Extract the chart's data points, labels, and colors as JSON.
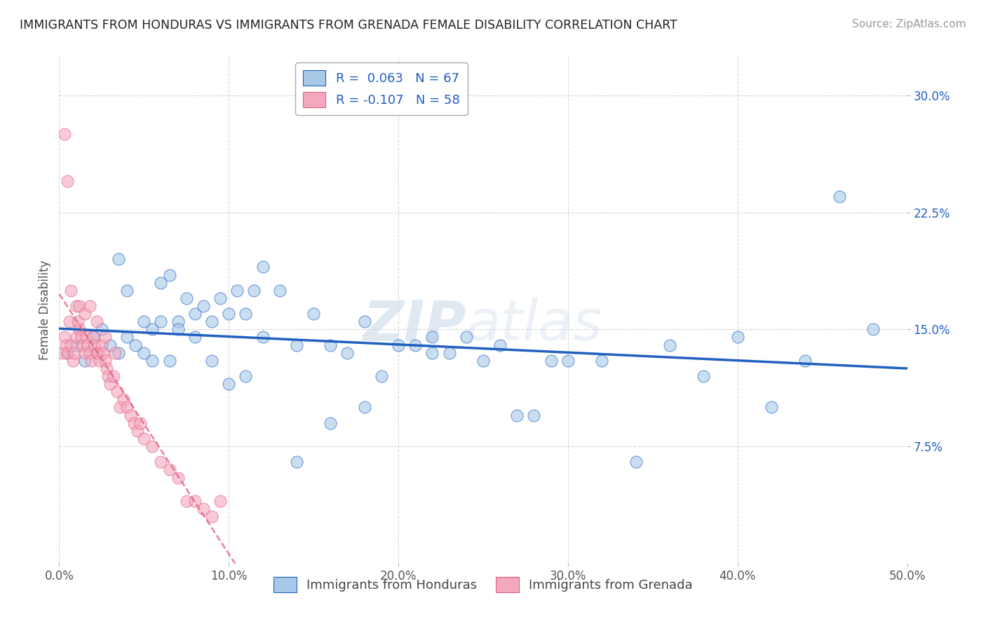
{
  "title": "IMMIGRANTS FROM HONDURAS VS IMMIGRANTS FROM GRENADA FEMALE DISABILITY CORRELATION CHART",
  "source": "Source: ZipAtlas.com",
  "ylabel": "Female Disability",
  "xlim": [
    0.0,
    0.5
  ],
  "ylim": [
    0.0,
    0.325
  ],
  "xticks": [
    0.0,
    0.1,
    0.2,
    0.3,
    0.4,
    0.5
  ],
  "yticks": [
    0.075,
    0.15,
    0.225,
    0.3
  ],
  "xticklabels": [
    "0.0%",
    "10.0%",
    "20.0%",
    "30.0%",
    "40.0%",
    "50.0%"
  ],
  "yticklabels": [
    "7.5%",
    "15.0%",
    "22.5%",
    "30.0%"
  ],
  "legend_labels": [
    "R =  0.063   N = 67",
    "R = -0.107   N = 58"
  ],
  "blue_color": "#a8c8e8",
  "pink_color": "#f4a8be",
  "blue_line_color": "#2060c0",
  "pink_line_color": "#e06080",
  "background_color": "#ffffff",
  "watermark_text": "ZIPatlas",
  "blue_x": [
    0.005,
    0.01,
    0.015,
    0.02,
    0.025,
    0.03,
    0.035,
    0.04,
    0.045,
    0.05,
    0.055,
    0.06,
    0.065,
    0.07,
    0.075,
    0.08,
    0.085,
    0.09,
    0.095,
    0.1,
    0.105,
    0.11,
    0.115,
    0.12,
    0.13,
    0.14,
    0.15,
    0.16,
    0.17,
    0.18,
    0.19,
    0.2,
    0.21,
    0.22,
    0.23,
    0.24,
    0.25,
    0.26,
    0.27,
    0.28,
    0.29,
    0.3,
    0.32,
    0.34,
    0.36,
    0.38,
    0.4,
    0.42,
    0.44,
    0.46,
    0.48,
    0.035,
    0.04,
    0.05,
    0.055,
    0.06,
    0.065,
    0.07,
    0.08,
    0.09,
    0.1,
    0.11,
    0.12,
    0.14,
    0.16,
    0.18,
    0.22
  ],
  "blue_y": [
    0.135,
    0.14,
    0.13,
    0.145,
    0.15,
    0.14,
    0.135,
    0.145,
    0.14,
    0.135,
    0.15,
    0.18,
    0.185,
    0.155,
    0.17,
    0.16,
    0.165,
    0.155,
    0.17,
    0.16,
    0.175,
    0.16,
    0.175,
    0.19,
    0.175,
    0.14,
    0.16,
    0.14,
    0.135,
    0.155,
    0.12,
    0.14,
    0.14,
    0.135,
    0.135,
    0.145,
    0.13,
    0.14,
    0.095,
    0.095,
    0.13,
    0.13,
    0.13,
    0.065,
    0.14,
    0.12,
    0.145,
    0.1,
    0.13,
    0.235,
    0.15,
    0.195,
    0.175,
    0.155,
    0.13,
    0.155,
    0.13,
    0.15,
    0.145,
    0.13,
    0.115,
    0.12,
    0.145,
    0.065,
    0.09,
    0.1,
    0.145
  ],
  "pink_x": [
    0.002,
    0.003,
    0.004,
    0.005,
    0.006,
    0.007,
    0.008,
    0.009,
    0.01,
    0.011,
    0.012,
    0.013,
    0.014,
    0.015,
    0.016,
    0.017,
    0.018,
    0.019,
    0.02,
    0.021,
    0.022,
    0.023,
    0.024,
    0.025,
    0.026,
    0.027,
    0.028,
    0.029,
    0.03,
    0.032,
    0.034,
    0.036,
    0.038,
    0.04,
    0.042,
    0.044,
    0.046,
    0.048,
    0.05,
    0.055,
    0.06,
    0.065,
    0.07,
    0.075,
    0.08,
    0.085,
    0.09,
    0.095,
    0.003,
    0.005,
    0.007,
    0.01,
    0.012,
    0.015,
    0.018,
    0.022,
    0.027,
    0.033
  ],
  "pink_y": [
    0.135,
    0.145,
    0.14,
    0.135,
    0.155,
    0.14,
    0.13,
    0.135,
    0.145,
    0.155,
    0.15,
    0.145,
    0.14,
    0.135,
    0.145,
    0.14,
    0.135,
    0.13,
    0.145,
    0.14,
    0.135,
    0.135,
    0.13,
    0.14,
    0.135,
    0.13,
    0.125,
    0.12,
    0.115,
    0.12,
    0.11,
    0.1,
    0.105,
    0.1,
    0.095,
    0.09,
    0.085,
    0.09,
    0.08,
    0.075,
    0.065,
    0.06,
    0.055,
    0.04,
    0.04,
    0.035,
    0.03,
    0.04,
    0.275,
    0.245,
    0.175,
    0.165,
    0.165,
    0.16,
    0.165,
    0.155,
    0.145,
    0.135
  ]
}
